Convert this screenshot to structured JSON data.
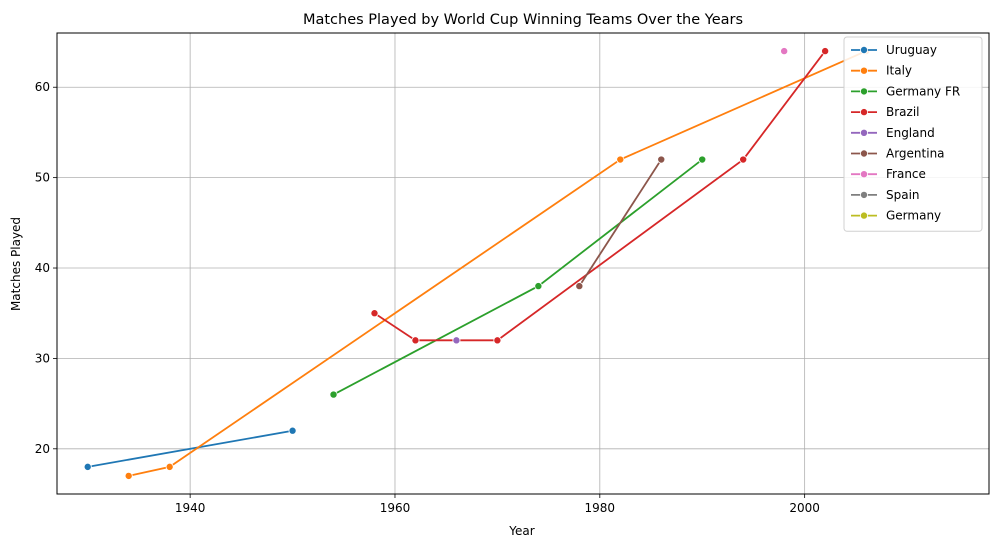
{
  "chart_data": {
    "type": "line",
    "title": "Matches Played by World Cup Winning Teams Over the Years",
    "xlabel": "Year",
    "ylabel": "Matches Played",
    "xlim": [
      1927,
      2018
    ],
    "ylim": [
      15,
      66
    ],
    "xticks": [
      1940,
      1960,
      1980,
      2000
    ],
    "yticks": [
      20,
      30,
      40,
      50,
      60
    ],
    "grid": true,
    "legend_position": "top-right",
    "series": [
      {
        "name": "Uruguay",
        "color": "#1f77b4",
        "points": [
          [
            1930,
            18
          ],
          [
            1950,
            22
          ]
        ]
      },
      {
        "name": "Italy",
        "color": "#ff7f0e",
        "points": [
          [
            1934,
            17
          ],
          [
            1938,
            18
          ],
          [
            1982,
            52
          ],
          [
            2006,
            64
          ]
        ]
      },
      {
        "name": "Germany FR",
        "color": "#2ca02c",
        "points": [
          [
            1954,
            26
          ],
          [
            1974,
            38
          ],
          [
            1990,
            52
          ]
        ]
      },
      {
        "name": "Brazil",
        "color": "#d62728",
        "points": [
          [
            1958,
            35
          ],
          [
            1962,
            32
          ],
          [
            1970,
            32
          ],
          [
            1994,
            52
          ],
          [
            2002,
            64
          ]
        ]
      },
      {
        "name": "England",
        "color": "#9467bd",
        "points": [
          [
            1966,
            32
          ]
        ]
      },
      {
        "name": "Argentina",
        "color": "#8c564b",
        "points": [
          [
            1978,
            38
          ],
          [
            1986,
            52
          ]
        ]
      },
      {
        "name": "France",
        "color": "#e377c2",
        "points": [
          [
            1998,
            64
          ]
        ]
      },
      {
        "name": "Spain",
        "color": "#7f7f7f",
        "points": []
      },
      {
        "name": "Germany",
        "color": "#bcbd22",
        "points": []
      }
    ]
  }
}
